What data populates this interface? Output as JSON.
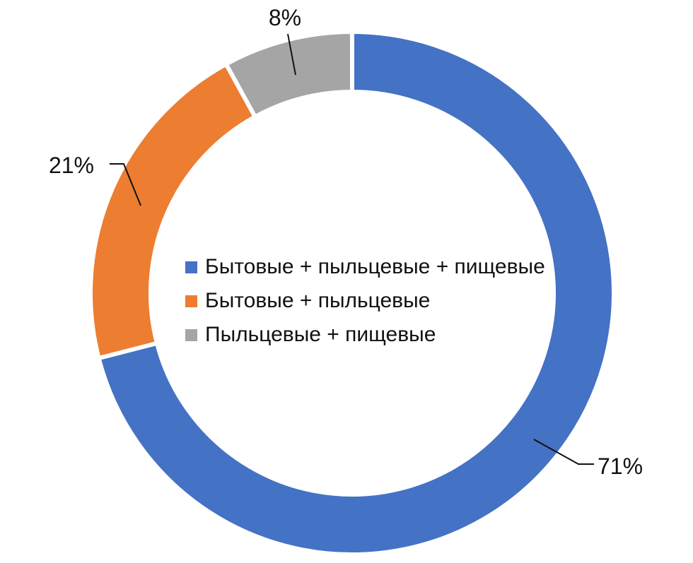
{
  "chart_data": {
    "type": "pie",
    "variant": "donut",
    "title": "",
    "categories": [
      "Бытовые + пыльцевые + пищевые",
      "Бытовые + пыльцевые",
      "Пыльцевые + пищевые"
    ],
    "values": [
      71,
      21,
      8
    ],
    "data_labels": [
      "71%",
      "21%",
      "8%"
    ],
    "colors": [
      "#4472C4",
      "#ED7D31",
      "#A5A5A5"
    ],
    "legend_position": "center",
    "grid": false
  }
}
